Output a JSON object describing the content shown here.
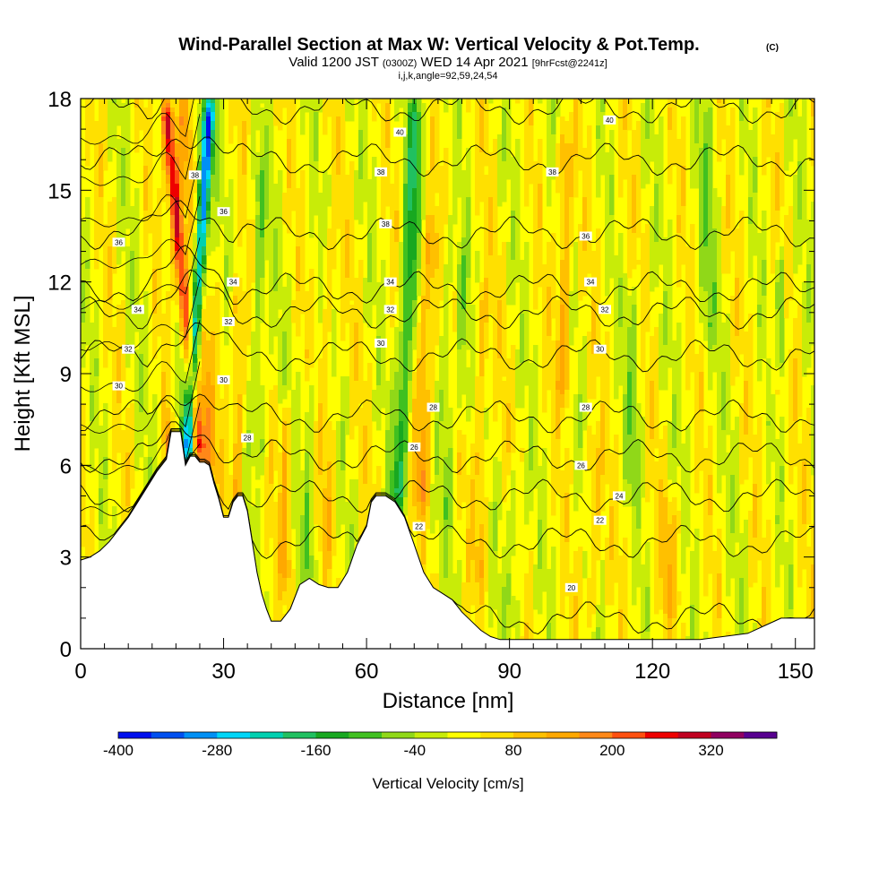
{
  "chart_data": {
    "type": "heatmap",
    "title": "Wind-Parallel Section at Max W: Vertical Velocity & Pot.Temp.",
    "copyright": "(C)",
    "subtitle": {
      "valid": "Valid 1200 JST",
      "zulu": "(0300Z)",
      "date": "WED 14 Apr 2021",
      "fcst": "[9hrFcst@2241z]"
    },
    "indices": "i,j,k,angle=92,59,24,54",
    "xlabel": "Distance [nm]",
    "ylabel": "Height [Kft MSL]",
    "xlim": [
      0,
      154
    ],
    "ylim": [
      0,
      18
    ],
    "x_ticks": [
      "0",
      "30",
      "60",
      "90",
      "120",
      "150"
    ],
    "x_tick_values": [
      0,
      30,
      60,
      90,
      120,
      150
    ],
    "y_ticks": [
      "0",
      "3",
      "6",
      "9",
      "12",
      "15",
      "18"
    ],
    "y_tick_values": [
      0,
      3,
      6,
      9,
      12,
      15,
      18
    ],
    "colorbar": {
      "label": "Vertical Velocity [cm/s]",
      "tick_labels": [
        "-400",
        "-280",
        "-160",
        "-40",
        "80",
        "200",
        "320"
      ],
      "min": -400,
      "max": 400,
      "step": 40,
      "colors": [
        "#0010ee",
        "#0050f0",
        "#0090f5",
        "#00d6f8",
        "#00d0b0",
        "#20c060",
        "#18a820",
        "#40c020",
        "#90d818",
        "#c8ec08",
        "#ffff00",
        "#ffe000",
        "#ffc000",
        "#ffa800",
        "#ff8818",
        "#ff5010",
        "#ee0000",
        "#c00020",
        "#900060",
        "#580090"
      ]
    },
    "terrain_profile": {
      "x": [
        0,
        2,
        4,
        6,
        8,
        10,
        12,
        14,
        16,
        18,
        19,
        20,
        21,
        22,
        23,
        24,
        25,
        26,
        27,
        28,
        29,
        30,
        31,
        32,
        33,
        34,
        35,
        36,
        37,
        38,
        39,
        40,
        42,
        44,
        46,
        48,
        50,
        52,
        54,
        56,
        58,
        60,
        61,
        62,
        64,
        66,
        68,
        70,
        72,
        74,
        76,
        78,
        80,
        82,
        84,
        86,
        88,
        90,
        100,
        110,
        120,
        130,
        140,
        147,
        150,
        154
      ],
      "y": [
        2.9,
        3.0,
        3.2,
        3.5,
        3.9,
        4.3,
        4.8,
        5.3,
        5.8,
        6.2,
        7.1,
        7.1,
        7.1,
        6.0,
        6.3,
        6.3,
        6.1,
        6.1,
        6.0,
        5.4,
        4.9,
        4.3,
        4.3,
        4.8,
        5.0,
        5.0,
        4.5,
        3.5,
        2.5,
        1.8,
        1.3,
        0.9,
        0.9,
        1.3,
        2.1,
        2.3,
        2.1,
        2.0,
        2.0,
        2.5,
        3.4,
        4.0,
        4.8,
        5.0,
        5.0,
        4.8,
        4.3,
        3.4,
        2.5,
        2.0,
        1.8,
        1.6,
        1.2,
        0.9,
        0.6,
        0.4,
        0.3,
        0.3,
        0.3,
        0.3,
        0.3,
        0.3,
        0.5,
        1.0,
        1.0,
        1.0
      ]
    },
    "velocity_features": [
      {
        "x": 22.5,
        "z_bottom": 6.0,
        "z_top": 18,
        "lean": 0.04,
        "width": 1.2,
        "w": -340
      },
      {
        "x": 20.5,
        "z_bottom": 6.0,
        "z_top": 18,
        "lean": 0.04,
        "width": 1.5,
        "w": -90
      },
      {
        "x": 25.0,
        "z_bottom": 6.0,
        "z_top": 18,
        "lean": -0.06,
        "width": 1.4,
        "w": 300
      },
      {
        "x": 27.5,
        "z_bottom": 5.5,
        "z_top": 18,
        "lean": -0.05,
        "width": 1.6,
        "w": 110
      },
      {
        "x": 18.5,
        "z_bottom": 5.5,
        "z_top": 7.5,
        "lean": 0.0,
        "width": 0.8,
        "w": 140
      },
      {
        "x": 33.0,
        "z_bottom": 4.0,
        "z_top": 12,
        "lean": 0.0,
        "width": 1.2,
        "w": 110
      },
      {
        "x": 37.5,
        "z_bottom": 6.0,
        "z_top": 16,
        "lean": 0.0,
        "width": 1.4,
        "w": -90
      },
      {
        "x": 43.0,
        "z_bottom": 2.0,
        "z_top": 8,
        "lean": 0.0,
        "width": 1.1,
        "w": 110
      },
      {
        "x": 48.0,
        "z_bottom": 2.0,
        "z_top": 9,
        "lean": 0.0,
        "width": 1.2,
        "w": -80
      },
      {
        "x": 52.0,
        "z_bottom": 3.0,
        "z_top": 14,
        "lean": 0.0,
        "width": 1.5,
        "w": 60
      },
      {
        "x": 66.5,
        "z_bottom": 4.5,
        "z_top": 18,
        "lean": 0.03,
        "width": 1.5,
        "w": -170
      },
      {
        "x": 71.5,
        "z_bottom": 4.5,
        "z_top": 14,
        "lean": 0.02,
        "width": 1.6,
        "w": 120
      },
      {
        "x": 77.0,
        "z_bottom": 4.0,
        "z_top": 14,
        "lean": 0.0,
        "width": 1.3,
        "w": -60
      },
      {
        "x": 80.0,
        "z_bottom": 7.0,
        "z_top": 13,
        "lean": 0.0,
        "width": 1.2,
        "w": -80
      },
      {
        "x": 84.0,
        "z_bottom": 2.0,
        "z_top": 12,
        "lean": 0.0,
        "width": 1.4,
        "w": 80
      },
      {
        "x": 91.0,
        "z_bottom": 0.5,
        "z_top": 6,
        "lean": 0.0,
        "width": 1.8,
        "w": -60
      },
      {
        "x": 101.5,
        "z_bottom": 8.0,
        "z_top": 17,
        "lean": 0.0,
        "width": 1.4,
        "w": 120
      },
      {
        "x": 107.5,
        "z_bottom": 1.0,
        "z_top": 7,
        "lean": 0.0,
        "width": 1.5,
        "w": 80
      },
      {
        "x": 116.0,
        "z_bottom": 5.0,
        "z_top": 12,
        "lean": 0.0,
        "width": 1.6,
        "w": -60
      },
      {
        "x": 124.0,
        "z_bottom": 1.0,
        "z_top": 5,
        "lean": 0.0,
        "width": 2.5,
        "w": 60
      },
      {
        "x": 131.5,
        "z_bottom": 10.0,
        "z_top": 18,
        "lean": 0.0,
        "width": 2.0,
        "w": -60
      },
      {
        "x": 147.0,
        "z_bottom": 9.0,
        "z_top": 13,
        "lean": 0.0,
        "width": 1.0,
        "w": -120
      },
      {
        "x": 145.5,
        "z_bottom": 8.0,
        "z_top": 11,
        "lean": 0.0,
        "width": 1.0,
        "w": 60
      }
    ],
    "theta_contours": [
      {
        "label": "20",
        "base": 1.0
      },
      {
        "label": "22",
        "base": 3.5
      },
      {
        "label": "24",
        "base": 5.0
      },
      {
        "label": "26",
        "base": 6.3
      },
      {
        "label": "28",
        "base": 7.6
      },
      {
        "label": "30",
        "base": 9.6
      },
      {
        "label": "32",
        "base": 11.0
      },
      {
        "label": "34",
        "base": 11.8
      },
      {
        "label": "36",
        "base": 13.6
      },
      {
        "label": "38",
        "base": 16.0
      },
      {
        "label": "40",
        "base": 17.7
      }
    ],
    "theta_labels": [
      {
        "text": "30",
        "x": 8,
        "y": 8.6
      },
      {
        "text": "32",
        "x": 10,
        "y": 9.8
      },
      {
        "text": "34",
        "x": 12,
        "y": 11.1
      },
      {
        "text": "36",
        "x": 8,
        "y": 13.3
      },
      {
        "text": "38",
        "x": 24,
        "y": 15.5
      },
      {
        "text": "36",
        "x": 30,
        "y": 14.3
      },
      {
        "text": "34",
        "x": 32,
        "y": 12.0
      },
      {
        "text": "32",
        "x": 31,
        "y": 10.7
      },
      {
        "text": "30",
        "x": 30,
        "y": 8.8
      },
      {
        "text": "28",
        "x": 35,
        "y": 6.9
      },
      {
        "text": "40",
        "x": 67,
        "y": 16.9
      },
      {
        "text": "38",
        "x": 63,
        "y": 15.6
      },
      {
        "text": "38",
        "x": 64,
        "y": 13.9
      },
      {
        "text": "34",
        "x": 65,
        "y": 12.0
      },
      {
        "text": "32",
        "x": 65,
        "y": 11.1
      },
      {
        "text": "30",
        "x": 63,
        "y": 10.0
      },
      {
        "text": "28",
        "x": 74,
        "y": 7.9
      },
      {
        "text": "26",
        "x": 70,
        "y": 6.6
      },
      {
        "text": "22",
        "x": 71,
        "y": 4.0
      },
      {
        "text": "40",
        "x": 111,
        "y": 17.3
      },
      {
        "text": "38",
        "x": 99,
        "y": 15.6
      },
      {
        "text": "36",
        "x": 106,
        "y": 13.5
      },
      {
        "text": "34",
        "x": 107,
        "y": 12.0
      },
      {
        "text": "32",
        "x": 110,
        "y": 11.1
      },
      {
        "text": "30",
        "x": 109,
        "y": 9.8
      },
      {
        "text": "28",
        "x": 106,
        "y": 7.9
      },
      {
        "text": "26",
        "x": 105,
        "y": 6.0
      },
      {
        "text": "24",
        "x": 113,
        "y": 5.0
      },
      {
        "text": "22",
        "x": 109,
        "y": 4.2
      },
      {
        "text": "20",
        "x": 103,
        "y": 2.0
      }
    ]
  }
}
